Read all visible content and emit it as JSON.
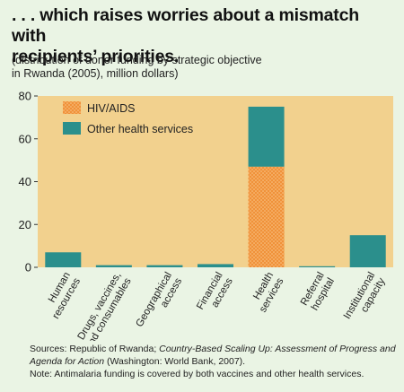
{
  "header": {
    "title_line1": ". . . which raises worries about a mismatch with",
    "title_line2": "recipients’ priorities.",
    "subtitle_line1": "(distribution of donor funding by strategic objective",
    "subtitle_line2": "in Rwanda (2005), million dollars)"
  },
  "colors": {
    "background": "#eaf4e4",
    "plot_area": "#f2d18e",
    "other_health": "#2b8f8c",
    "hiv_aids": "#f0923a"
  },
  "chart_data": {
    "type": "bar",
    "stacked": true,
    "categories": [
      [
        "Human",
        "resources"
      ],
      [
        "Drugs, vaccines,",
        "and consumables"
      ],
      [
        "Geographical",
        "access"
      ],
      [
        "Financial",
        "access"
      ],
      [
        "Health",
        "services"
      ],
      [
        "Referral",
        "hospital"
      ],
      [
        "Institutional",
        "capacity"
      ]
    ],
    "series": [
      {
        "name": "HIV/AIDS",
        "values": [
          0,
          0,
          0,
          0,
          47,
          0,
          0
        ],
        "color": "#f0923a",
        "pattern": "dotted"
      },
      {
        "name": "Other health services",
        "values": [
          7,
          1,
          1,
          1.5,
          28,
          0.5,
          15
        ],
        "color": "#2b8f8c"
      }
    ],
    "ylim": [
      0,
      80
    ],
    "yticks": [
      "0",
      "20",
      "40",
      "60",
      "80"
    ],
    "grid": false,
    "legend_position": "top-left"
  },
  "footer": {
    "sources_prefix": "Sources: Republic of Rwanda; ",
    "sources_title": "Country-Based Scaling Up: Assessment of Progress and Agenda for Action",
    "sources_suffix": " (Washington: World Bank, 2007).",
    "note": "Note: Antimalaria funding is covered by both vaccines and other health services."
  }
}
